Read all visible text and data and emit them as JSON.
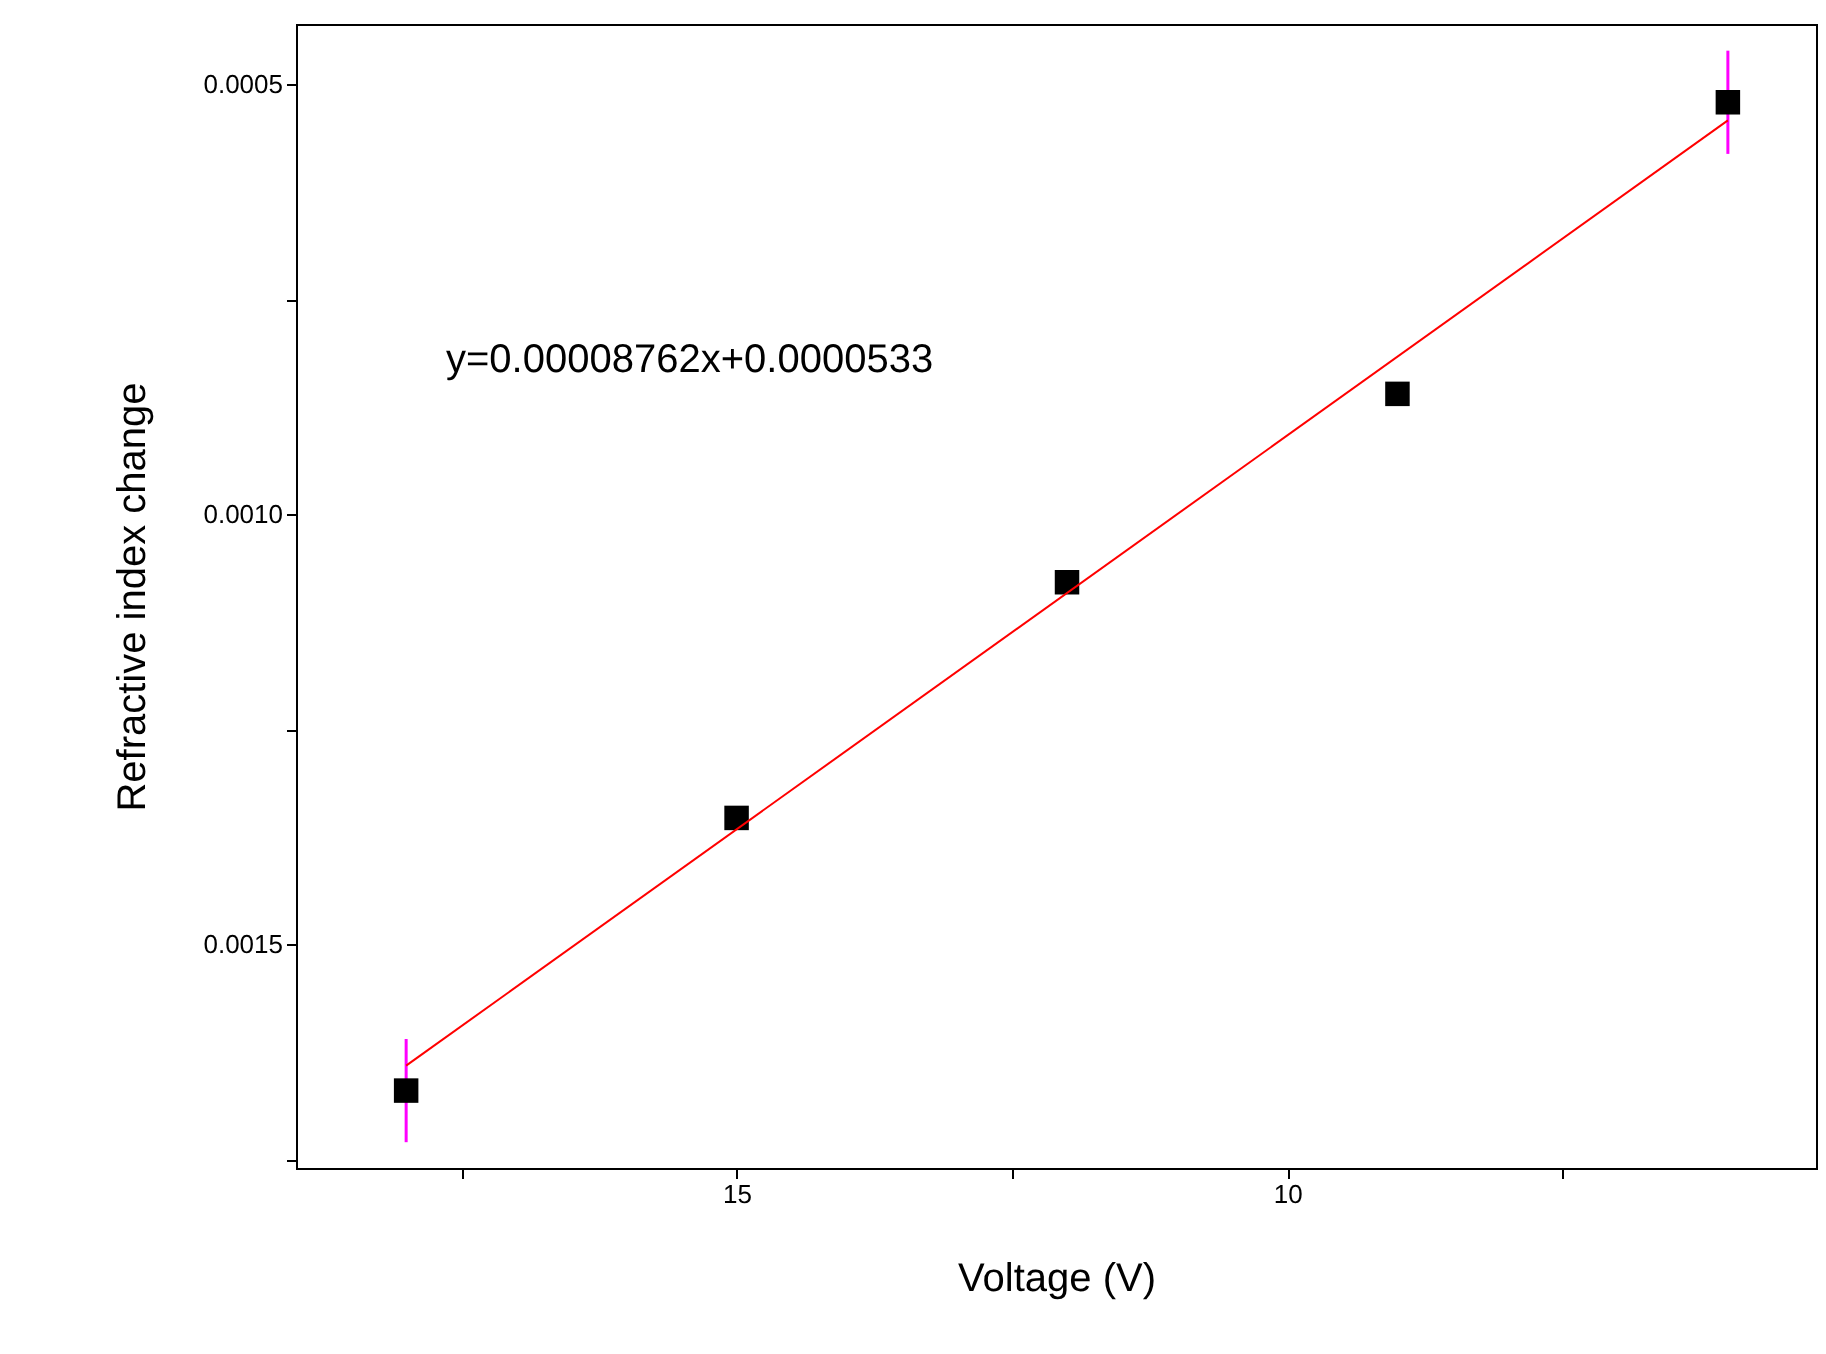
{
  "chart_data": {
    "type": "scatter",
    "xlabel": "Voltage (V)",
    "ylabel": "Refractive index change",
    "annotations": [
      "y=0.00008762x+0.0000533"
    ],
    "xlim": [
      19,
      5.2
    ],
    "xticks": [
      {
        "value": 17.5,
        "label": null
      },
      15,
      {
        "value": 12.5,
        "label": null
      },
      10,
      {
        "value": 7.5,
        "label": null
      }
    ],
    "ylim": [
      0.00176,
      0.00043
    ],
    "yticks": [
      {
        "value": 0.0005,
        "label": "0.0005"
      },
      {
        "value": 0.00075,
        "label": null
      },
      {
        "value": 0.001,
        "label": "0.0010"
      },
      {
        "value": 0.00125,
        "label": null
      },
      {
        "value": 0.0015,
        "label": "0.0015"
      },
      {
        "value": 0.00175,
        "label": null
      }
    ],
    "grid": false,
    "legend": false,
    "marker": "square",
    "series": [
      {
        "color": "#000000",
        "x": [
          18,
          15,
          12,
          9,
          6
        ],
        "values": [
          0.00167,
          0.001353,
          0.001079,
          0.00086,
          0.000521
        ],
        "errors": [
          6e-05,
          null,
          null,
          null,
          6e-05
        ]
      },
      {
        "type": "line",
        "color": "#ff0000",
        "x": [
          18,
          6
        ],
        "values": [
          0.001641,
          0.000542
        ],
        "line_style": "solid",
        "marker": "none"
      }
    ]
  }
}
